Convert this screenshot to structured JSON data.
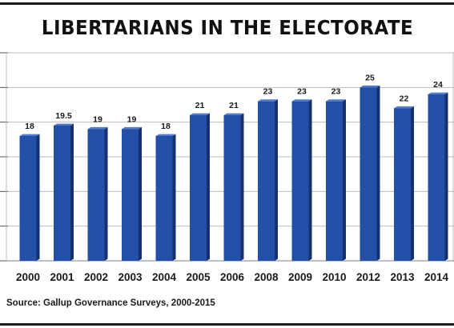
{
  "chart_data": {
    "type": "bar",
    "title": "LIBERTARIANS IN THE ELECTORATE",
    "categories": [
      "2000",
      "2001",
      "2002",
      "2003",
      "2004",
      "2005",
      "2006",
      "2008",
      "2009",
      "2010",
      "2012",
      "2013",
      "2014"
    ],
    "values": [
      18,
      19.5,
      19,
      19,
      18,
      21,
      21,
      23,
      23,
      23,
      25,
      22,
      24
    ],
    "value_labels": [
      "18",
      "19.5",
      "19",
      "19",
      "18",
      "21",
      "21",
      "23",
      "23",
      "23",
      "25",
      "22",
      "24"
    ],
    "xlabel": "",
    "ylabel": "",
    "ylim": [
      0,
      30
    ],
    "grid": true,
    "legend": "none",
    "colors": {
      "bar": "#2350a6",
      "bar_top": "#4f7ad0",
      "bar_shade": "#14306e",
      "grid": "#bdbdbd",
      "rule": "#1a1a1a"
    }
  },
  "source": "Source: Gallup Governance Surveys, 2000-2015"
}
